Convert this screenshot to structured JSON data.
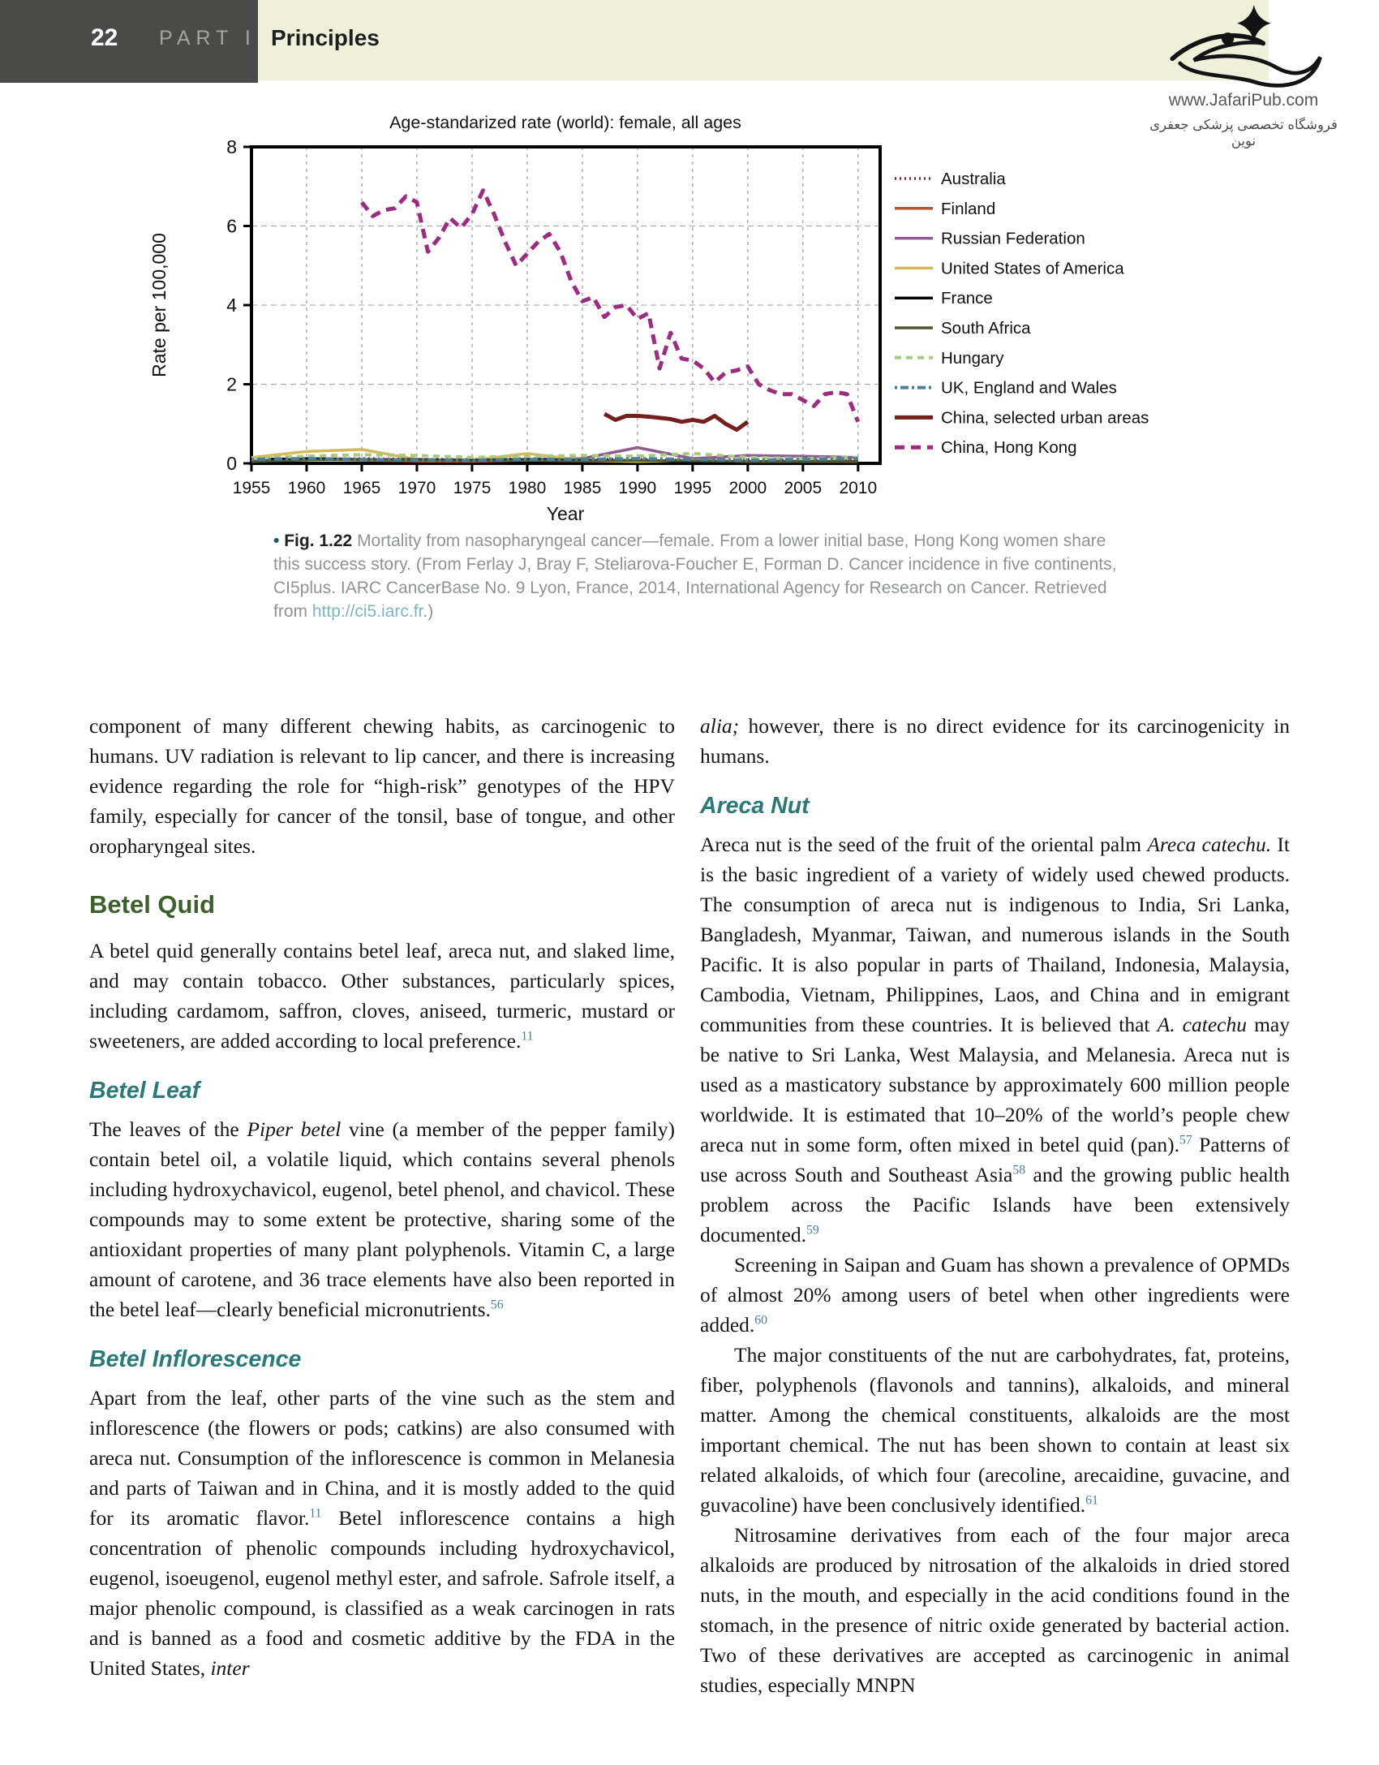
{
  "header": {
    "page_number": "22",
    "part_label": "PART I",
    "section": "Principles",
    "bar_color": "#4a4a49",
    "strip_color": "#eef0da"
  },
  "logo": {
    "url_text": "www.JafariPub.com",
    "persian_text": "فروشگاه تخصصی پزشکی جعفری نوین"
  },
  "chart_data": {
    "type": "line",
    "title": "Age-standarized rate (world): female, all ages",
    "xlabel": "Year",
    "ylabel": "Rate per 100,000",
    "xlim": [
      1955,
      2012
    ],
    "ylim": [
      0,
      8
    ],
    "xticks": [
      1955,
      1960,
      1965,
      1970,
      1975,
      1980,
      1985,
      1990,
      1995,
      2000,
      2005,
      2010
    ],
    "yticks": [
      0,
      2,
      4,
      6,
      8
    ],
    "grid": "dashed",
    "legend_position": "right",
    "series": [
      {
        "name": "Australia",
        "color": "#8c2433",
        "dash": "2 4",
        "width": 3.5,
        "start": 1955,
        "step": 5,
        "values": [
          0.08,
          0.1,
          0.12,
          0.1,
          0.1,
          0.12,
          0.1,
          0.1,
          0.08,
          0.1,
          0.08,
          0.1
        ]
      },
      {
        "name": "Finland",
        "color": "#b2562e",
        "dash": "",
        "width": 3.5,
        "start": 1955,
        "step": 5,
        "values": [
          0.05,
          0.1,
          0.08,
          0.06,
          0.05,
          0.08,
          0.06,
          0.05,
          0.08,
          0.05,
          0.06,
          0.05
        ]
      },
      {
        "name": "Russian Federation",
        "color": "#8e5a90",
        "dash": "",
        "width": 3.5,
        "start": 1955,
        "step": 5,
        "values": [
          0.1,
          0.12,
          0.1,
          0.08,
          0.08,
          0.1,
          0.12,
          0.4,
          0.12,
          0.2,
          0.18,
          0.15
        ]
      },
      {
        "name": "United States of America",
        "color": "#d4b85c",
        "dash": "",
        "width": 3.5,
        "start": 1955,
        "step": 5,
        "values": [
          0.15,
          0.3,
          0.35,
          0.1,
          0.08,
          0.25,
          0.08,
          0.05,
          0.08,
          0.05,
          0.05,
          0.05
        ]
      },
      {
        "name": "France",
        "color": "#000000",
        "dash": "",
        "width": 3,
        "start": 1955,
        "step": 5,
        "values": [
          0.1,
          0.12,
          0.1,
          0.1,
          0.08,
          0.1,
          0.08,
          0.08,
          0.06,
          0.05,
          0.05,
          0.05
        ]
      },
      {
        "name": "South Africa",
        "color": "#50552f",
        "dash": "",
        "width": 3,
        "start": 1955,
        "step": 5,
        "values": [
          0.05,
          0.08,
          0.1,
          0.08,
          0.06,
          0.08,
          0.06,
          0.08,
          0.06,
          0.05,
          0.05,
          0.05
        ]
      },
      {
        "name": "Hungary",
        "color": "#a9ca7d",
        "dash": "8 6",
        "width": 4,
        "start": 1955,
        "step": 5,
        "values": [
          0.12,
          0.18,
          0.22,
          0.2,
          0.15,
          0.18,
          0.2,
          0.18,
          0.25,
          0.15,
          0.12,
          0.15
        ]
      },
      {
        "name": "UK, England and Wales",
        "color": "#48809a",
        "dash": "3 4 10 4",
        "width": 4,
        "start": 1955,
        "step": 5,
        "values": [
          0.1,
          0.12,
          0.1,
          0.08,
          0.08,
          0.1,
          0.1,
          0.12,
          0.1,
          0.08,
          0.1,
          0.12
        ]
      },
      {
        "name": "China, selected urban areas",
        "color": "#741f1c",
        "dash": "",
        "width": 5,
        "start": 1987,
        "step": 1,
        "values": [
          1.25,
          1.1,
          1.2,
          1.2,
          1.18,
          1.15,
          1.12,
          1.05,
          1.1,
          1.05,
          1.2,
          1.0,
          0.85,
          1.05
        ]
      },
      {
        "name": "China, Hong Kong",
        "color": "#9e2b82",
        "dash": "12 8",
        "width": 5,
        "start": 1965,
        "step": 1,
        "values": [
          6.6,
          6.25,
          6.4,
          6.45,
          6.75,
          6.6,
          5.35,
          5.7,
          6.2,
          5.95,
          6.3,
          6.9,
          6.3,
          5.6,
          5.0,
          5.3,
          5.6,
          5.8,
          5.35,
          4.6,
          4.1,
          4.2,
          3.7,
          3.95,
          4.0,
          3.65,
          3.8,
          2.4,
          3.3,
          2.65,
          2.6,
          2.4,
          2.05,
          2.3,
          2.35,
          2.45,
          2.0,
          1.85,
          1.75,
          1.75,
          1.6,
          1.45,
          1.75,
          1.8,
          1.75,
          1.05
        ]
      }
    ]
  },
  "figure": {
    "bullet": "•",
    "label": "Fig. 1.22",
    "text_before_link": "  Mortality from nasopharyngeal cancer—female. From a lower initial base, Hong Kong women share this success story. (From Ferlay J, Bray F, Steliarova-Foucher E, Forman D. Cancer incidence in five continents, CI5plus. IARC CancerBase No. 9 Lyon, France, 2014, International Agency for Research on Cancer. Retrieved from ",
    "link": "http://ci5.iarc.fr",
    "text_after_link": ".)"
  },
  "body": {
    "columns": [
      {
        "blocks": [
          {
            "type": "p",
            "runs": [
              {
                "t": "component of many different chewing habits, as carcinogenic to humans. UV radiation is relevant to lip cancer, and there is increasing evidence regarding the role for “high-risk” genotypes of the HPV family, especially for cancer of the tonsil, base of tongue, and other oropharyngeal sites."
              }
            ]
          },
          {
            "type": "h2",
            "text": "Betel Quid"
          },
          {
            "type": "p",
            "runs": [
              {
                "t": "A betel quid generally contains betel leaf, areca nut, and slaked lime, and may contain tobacco. Other substances, particularly spices, including cardamom, saffron, cloves, aniseed, turmeric, mustard or sweeteners, are added according to local preference."
              },
              {
                "t": "11",
                "s": "sup"
              }
            ]
          },
          {
            "type": "h3",
            "text": "Betel Leaf"
          },
          {
            "type": "p",
            "runs": [
              {
                "t": "The leaves of the "
              },
              {
                "t": "Piper betel",
                "s": "i"
              },
              {
                "t": " vine (a member of the pepper family) contain betel oil, a volatile liquid, which contains several phenols including hydroxychavicol, eugenol, betel phenol, and chavicol. These compounds may to some extent be protective, sharing some of the antioxidant properties of many plant polyphenols. Vitamin C, a large amount of carotene, and 36 trace elements have also been reported in the betel leaf—clearly beneficial micronutrients."
              },
              {
                "t": "56",
                "s": "sup"
              }
            ]
          },
          {
            "type": "h3",
            "text": "Betel Inflorescence"
          },
          {
            "type": "p",
            "runs": [
              {
                "t": "Apart from the leaf, other parts of the vine such as the stem and inflorescence (the flowers or pods; catkins) are also consumed with areca nut. Consumption of the inflorescence is common in Melanesia and parts of Taiwan and in China, and it is mostly added to the quid for its aromatic flavor."
              },
              {
                "t": "11",
                "s": "sup"
              },
              {
                "t": " Betel inflorescence contains a high concentration of phenolic compounds including hydroxychavicol, eugenol, isoeugenol, eugenol methyl ester, and safrole. Safrole itself, a major phenolic compound, is classified as a weak carcinogen in rats and is banned as a food and cosmetic additive by the FDA in the United States, "
              },
              {
                "t": "inter",
                "s": "i"
              }
            ]
          }
        ]
      },
      {
        "blocks": [
          {
            "type": "p",
            "runs": [
              {
                "t": "alia;",
                "s": "i"
              },
              {
                "t": " however, there is no direct evidence for its carcinogenicity in humans."
              }
            ]
          },
          {
            "type": "h3",
            "text": "Areca Nut"
          },
          {
            "type": "p",
            "runs": [
              {
                "t": "Areca nut is the seed of the fruit of the oriental palm "
              },
              {
                "t": "Areca catechu.",
                "s": "i"
              },
              {
                "t": " It is the basic ingredient of a variety of widely used chewed products. The consumption of areca nut is indigenous to India, Sri Lanka, Bangladesh, Myanmar, Taiwan, and numerous islands in the South Pacific. It is also popular in parts of Thailand, Indonesia, Malaysia, Cambodia, Vietnam, Philippines, Laos, and China and in emigrant communities from these countries. It is believed that "
              },
              {
                "t": "A. catechu",
                "s": "i"
              },
              {
                "t": " may be native to Sri Lanka, West Malaysia, and Melanesia. Areca nut is used as a masticatory substance by approximately 600 million people worldwide. It is estimated that 10–20% of the world’s people chew areca nut in some form, often mixed in betel quid (pan)."
              },
              {
                "t": "57",
                "s": "sup"
              },
              {
                "t": " Patterns of use across South and Southeast Asia"
              },
              {
                "t": "58",
                "s": "sup"
              },
              {
                "t": " and the growing public health problem across the Pacific Islands have been extensively documented."
              },
              {
                "t": "59",
                "s": "sup"
              }
            ]
          },
          {
            "type": "p",
            "indent": true,
            "runs": [
              {
                "t": "Screening in Saipan and Guam has shown a prevalence of OPMDs of almost 20% among users of betel when other ingredients were added."
              },
              {
                "t": "60",
                "s": "sup"
              }
            ]
          },
          {
            "type": "p",
            "indent": true,
            "runs": [
              {
                "t": "The major constituents of the nut are carbohydrates, fat, proteins, fiber, polyphenols (flavonols and tannins), alkaloids, and mineral matter. Among the chemical constituents, alkaloids are the most important chemical. The nut has been shown to contain at least six related alkaloids, of which four (arecoline, arecaidine, guvacine, and guvacoline) have been conclusively identified."
              },
              {
                "t": "61",
                "s": "sup"
              }
            ]
          },
          {
            "type": "p",
            "indent": true,
            "runs": [
              {
                "t": "Nitrosamine derivatives from each of the four major areca alkaloids are produced by nitrosation of the alkaloids in dried stored nuts, in the mouth, and especially in the acid conditions found in the stomach, in the presence of nitric oxide generated by bacterial action. Two of these derivatives are accepted as carcinogenic in animal studies, especially MNPN"
              }
            ]
          }
        ]
      }
    ]
  }
}
